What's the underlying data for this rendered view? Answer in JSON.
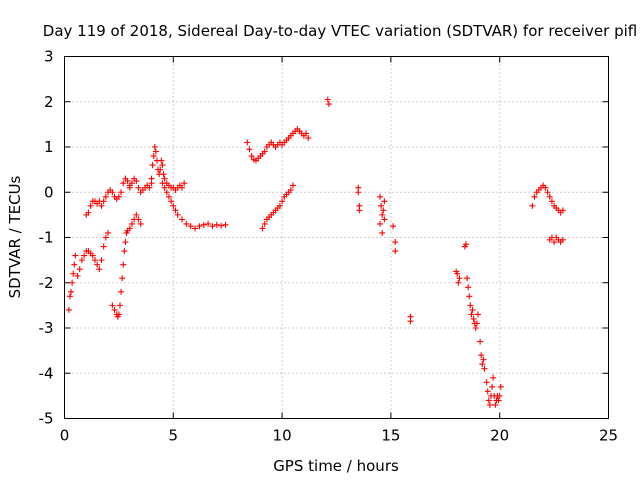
{
  "chart_data": {
    "type": "scatter",
    "title": "Day 119 of 2018, Sidereal Day-to-day VTEC variation (SDTVAR) for receiver pifl",
    "xlabel": "GPS time / hours",
    "ylabel": "SDTVAR / TECUs",
    "xlim": [
      0,
      25
    ],
    "ylim": [
      -5,
      3
    ],
    "xticks": [
      0,
      5,
      10,
      15,
      20,
      25
    ],
    "yticks": [
      -5,
      -4,
      -3,
      -2,
      -1,
      0,
      1,
      2,
      3
    ],
    "grid": true,
    "marker": "plus",
    "marker_color": "#ff0000",
    "series": [
      {
        "name": "SDTVAR",
        "x": [
          0.2,
          0.25,
          0.3,
          0.35,
          0.4,
          0.45,
          0.5,
          0.6,
          0.7,
          0.8,
          0.9,
          1.0,
          1.1,
          1.2,
          1.3,
          1.4,
          1.5,
          1.6,
          1.7,
          1.8,
          1.9,
          2.0,
          1.0,
          1.1,
          1.2,
          1.3,
          1.4,
          1.5,
          1.6,
          1.7,
          1.8,
          1.9,
          2.0,
          2.1,
          2.2,
          2.3,
          2.4,
          2.5,
          2.6,
          2.7,
          2.8,
          2.9,
          3.0,
          2.2,
          2.3,
          2.4,
          2.45,
          2.5,
          2.55,
          2.6,
          2.65,
          2.7,
          2.75,
          2.8,
          2.85,
          2.9,
          3.0,
          3.1,
          3.2,
          3.3,
          3.4,
          3.5,
          3.0,
          3.1,
          3.2,
          3.3,
          3.4,
          3.5,
          3.6,
          3.7,
          3.8,
          3.9,
          4.0,
          4.0,
          4.05,
          4.1,
          4.15,
          4.2,
          4.25,
          4.3,
          4.35,
          4.4,
          4.45,
          4.5,
          4.55,
          4.6,
          4.7,
          4.8,
          4.9,
          5.0,
          5.1,
          5.2,
          5.3,
          5.4,
          5.5,
          4.5,
          4.6,
          4.7,
          4.8,
          4.9,
          5.0,
          5.1,
          5.2,
          5.4,
          5.6,
          5.8,
          6.0,
          6.2,
          6.4,
          6.6,
          6.8,
          7.0,
          7.2,
          7.4,
          8.4,
          8.5,
          8.6,
          8.7,
          8.8,
          8.9,
          9.0,
          9.1,
          9.2,
          9.3,
          9.4,
          9.5,
          9.6,
          9.7,
          9.8,
          9.9,
          10.0,
          10.1,
          10.2,
          10.3,
          10.4,
          10.5,
          10.6,
          10.7,
          10.8,
          10.9,
          11.0,
          11.1,
          11.2,
          9.1,
          9.2,
          9.3,
          9.4,
          9.5,
          9.6,
          9.7,
          9.8,
          9.9,
          10.0,
          10.1,
          10.2,
          10.3,
          10.4,
          10.5,
          12.1,
          12.15,
          13.5,
          13.5,
          13.55,
          13.55,
          14.5,
          14.55,
          14.6,
          14.65,
          14.7,
          14.5,
          14.6,
          14.7,
          15.1,
          15.2,
          15.2,
          15.9,
          15.9,
          18.0,
          18.05,
          18.1,
          18.15,
          18.4,
          18.45,
          18.5,
          18.55,
          18.6,
          18.65,
          18.7,
          18.75,
          18.8,
          18.85,
          18.9,
          18.95,
          19.0,
          19.1,
          19.15,
          19.2,
          19.25,
          19.3,
          19.4,
          19.45,
          19.5,
          19.55,
          19.6,
          19.65,
          19.7,
          19.75,
          19.8,
          19.85,
          19.9,
          19.95,
          20.0,
          20.05,
          21.5,
          21.6,
          21.7,
          21.8,
          21.9,
          22.0,
          22.1,
          22.2,
          22.3,
          22.4,
          22.5,
          22.6,
          22.7,
          22.8,
          22.9,
          22.3,
          22.4,
          22.5,
          22.6,
          22.7,
          22.8,
          22.9
        ],
        "y": [
          -2.6,
          -2.3,
          -2.2,
          -2.0,
          -1.8,
          -1.6,
          -1.4,
          -1.85,
          -1.7,
          -1.5,
          -1.4,
          -1.3,
          -1.3,
          -1.35,
          -1.4,
          -1.5,
          -1.6,
          -1.7,
          -1.5,
          -1.2,
          -1.0,
          -0.9,
          -0.5,
          -0.45,
          -0.3,
          -0.2,
          -0.2,
          -0.25,
          -0.2,
          -0.3,
          -0.2,
          -0.1,
          0.0,
          0.05,
          0.0,
          -0.1,
          -0.15,
          -0.1,
          0.0,
          0.2,
          0.3,
          0.25,
          0.15,
          -2.5,
          -2.6,
          -2.7,
          -2.75,
          -2.7,
          -2.5,
          -2.2,
          -1.9,
          -1.6,
          -1.3,
          -1.1,
          -0.9,
          -0.85,
          -0.8,
          -0.7,
          -0.6,
          -0.5,
          -0.6,
          -0.7,
          0.1,
          0.2,
          0.3,
          0.25,
          0.1,
          0.0,
          0.05,
          0.1,
          0.15,
          0.1,
          0.2,
          0.3,
          0.6,
          0.8,
          1.0,
          0.9,
          0.7,
          0.5,
          0.4,
          0.5,
          0.7,
          0.6,
          0.4,
          0.3,
          0.2,
          0.15,
          0.1,
          0.1,
          0.05,
          0.1,
          0.15,
          0.1,
          0.2,
          0.2,
          0.1,
          0.0,
          -0.1,
          -0.2,
          -0.3,
          -0.4,
          -0.5,
          -0.6,
          -0.7,
          -0.75,
          -0.8,
          -0.75,
          -0.72,
          -0.7,
          -0.75,
          -0.72,
          -0.74,
          -0.72,
          1.1,
          0.95,
          0.8,
          0.72,
          0.7,
          0.75,
          0.8,
          0.85,
          0.9,
          1.0,
          1.05,
          1.1,
          1.05,
          1.0,
          1.05,
          1.1,
          1.05,
          1.1,
          1.15,
          1.2,
          1.25,
          1.3,
          1.35,
          1.4,
          1.35,
          1.3,
          1.25,
          1.3,
          1.2,
          -0.8,
          -0.7,
          -0.6,
          -0.55,
          -0.5,
          -0.45,
          -0.4,
          -0.35,
          -0.3,
          -0.2,
          -0.1,
          -0.05,
          0.0,
          0.05,
          0.15,
          2.05,
          1.95,
          0.1,
          0.0,
          -0.3,
          -0.4,
          -0.1,
          -0.3,
          -0.5,
          -0.4,
          -0.2,
          -0.7,
          -0.9,
          -0.6,
          -0.75,
          -1.1,
          -1.3,
          -2.75,
          -2.85,
          -1.75,
          -1.8,
          -2.0,
          -1.9,
          -1.2,
          -1.15,
          -1.9,
          -2.1,
          -2.3,
          -2.5,
          -2.7,
          -2.6,
          -2.8,
          -2.9,
          -3.0,
          -2.9,
          -2.7,
          -3.3,
          -3.6,
          -3.8,
          -3.7,
          -3.9,
          -4.2,
          -4.4,
          -4.6,
          -4.7,
          -4.5,
          -4.3,
          -4.1,
          -4.5,
          -4.7,
          -4.6,
          -4.5,
          -4.6,
          -4.5,
          -4.3,
          -0.3,
          -0.1,
          0.0,
          0.05,
          0.1,
          0.15,
          0.1,
          0.0,
          -0.1,
          -0.2,
          -0.3,
          -0.35,
          -0.4,
          -0.45,
          -0.4,
          -1.05,
          -1.0,
          -1.1,
          -1.0,
          -1.05,
          -1.1,
          -1.05
        ]
      }
    ]
  }
}
